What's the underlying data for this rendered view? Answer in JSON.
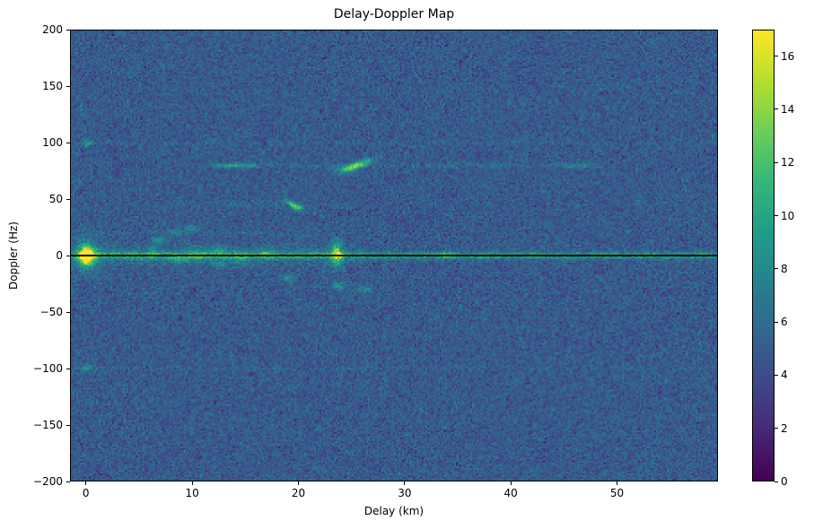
{
  "chart_data": {
    "type": "heatmap",
    "title": "Delay-Doppler Map",
    "xlabel": "Delay (km)",
    "ylabel": "Doppler (Hz)",
    "x_range": [
      -1.5,
      59.5
    ],
    "y_range": [
      -200,
      200
    ],
    "x_ticks": [
      0,
      10,
      20,
      30,
      40,
      50
    ],
    "y_ticks": [
      200,
      150,
      100,
      50,
      0,
      -50,
      -100,
      -150,
      -200
    ],
    "colormap": "viridis",
    "vlim": [
      0,
      17
    ],
    "colorbar_ticks": [
      0,
      2,
      4,
      6,
      8,
      10,
      12,
      14,
      16
    ],
    "legend": "none",
    "grid": false,
    "noise": {
      "mean": 4.8,
      "std": 1.0,
      "seed": 1337
    },
    "features": {
      "zero_doppler_line": {
        "doppler": 0,
        "color": "#000000"
      },
      "stripes": [
        {
          "doppler": 0,
          "d0": -1.5,
          "d1": 59.5,
          "amp": 4.6,
          "sigma": 2.0,
          "fade": 0
        },
        {
          "doppler": 0,
          "d0": -0.5,
          "d1": 27,
          "amp": 1.6,
          "sigma": 5.5,
          "fade": 3
        },
        {
          "doppler": 100,
          "d0": -1.5,
          "d1": 59.5,
          "amp": 0.5,
          "sigma": 1.2,
          "fade": 0
        },
        {
          "doppler": -100,
          "d0": -1.5,
          "d1": 59.5,
          "amp": 0.45,
          "sigma": 1.2,
          "fade": 0
        },
        {
          "doppler": 80,
          "d0": 10.5,
          "d1": 48,
          "amp": 1.1,
          "sigma": 1.3,
          "fade": 3
        },
        {
          "doppler": 80,
          "d0": 12,
          "d1": 16.5,
          "amp": 2.2,
          "sigma": 1.2,
          "fade": 1
        },
        {
          "doppler": 45,
          "d0": 4,
          "d1": 27,
          "amp": 0.7,
          "sigma": 1.3,
          "fade": 3
        },
        {
          "doppler": 20,
          "d0": 4,
          "d1": 24,
          "amp": 0.45,
          "sigma": 1.6,
          "fade": 3
        }
      ],
      "blobs": [
        {
          "delay": 0,
          "doppler": 0,
          "amp": 13,
          "sd": 0.45,
          "sf": 5.5
        },
        {
          "delay": 0,
          "doppler": 0,
          "amp": 4,
          "sd": 0.9,
          "sf": 11
        },
        {
          "delay": 0,
          "doppler": 100,
          "amp": 4.5,
          "sd": 0.4,
          "sf": 1.8
        },
        {
          "delay": 0,
          "doppler": -100,
          "amp": 3.8,
          "sd": 0.4,
          "sf": 1.8
        },
        {
          "delay": 6.8,
          "doppler": 14,
          "amp": 3.2,
          "sd": 0.45,
          "sf": 2.2
        },
        {
          "delay": 8.4,
          "doppler": 21,
          "amp": 2.4,
          "sd": 0.4,
          "sf": 2.0
        },
        {
          "delay": 9.9,
          "doppler": 24,
          "amp": 3.2,
          "sd": 0.45,
          "sf": 2.2
        },
        {
          "delay": 12.3,
          "doppler": 5,
          "amp": 3.0,
          "sd": 0.5,
          "sf": 3.0
        },
        {
          "delay": 12.5,
          "doppler": -8,
          "amp": 3.2,
          "sd": 0.5,
          "sf": 2.2
        },
        {
          "delay": 8.7,
          "doppler": -4,
          "amp": 2.8,
          "sd": 0.5,
          "sf": 3.5
        },
        {
          "delay": 6.3,
          "doppler": 3,
          "amp": 2.8,
          "sd": 0.4,
          "sf": 4.5
        },
        {
          "delay": 10.4,
          "doppler": 1,
          "amp": 2.6,
          "sd": 0.5,
          "sf": 4.5
        },
        {
          "delay": 14.6,
          "doppler": -3,
          "amp": 2.6,
          "sd": 0.5,
          "sf": 3.5
        },
        {
          "delay": 16.9,
          "doppler": 2,
          "amp": 2.6,
          "sd": 0.5,
          "sf": 3.0
        },
        {
          "delay": 19.4,
          "doppler": 45,
          "amp": 5.5,
          "sd": 0.55,
          "sf": 2.2,
          "slope": -5
        },
        {
          "delay": 19.9,
          "doppler": 43,
          "amp": 3.5,
          "sd": 0.4,
          "sf": 2.0
        },
        {
          "delay": 25.5,
          "doppler": 80,
          "amp": 7.5,
          "sd": 1.0,
          "sf": 2.4,
          "slope": 3.5
        },
        {
          "delay": 24.5,
          "doppler": 77.5,
          "amp": 3.0,
          "sd": 0.8,
          "sf": 2.0
        },
        {
          "delay": 13.5,
          "doppler": 80,
          "amp": 2.0,
          "sd": 1.6,
          "sf": 1.4
        },
        {
          "delay": 19.0,
          "doppler": -20,
          "amp": 3.8,
          "sd": 0.5,
          "sf": 2.2
        },
        {
          "delay": 23.6,
          "doppler": 2,
          "amp": 8.0,
          "sd": 0.35,
          "sf": 7.5
        },
        {
          "delay": 23.8,
          "doppler": -27,
          "amp": 4.2,
          "sd": 0.45,
          "sf": 2.4
        },
        {
          "delay": 26.2,
          "doppler": -30,
          "amp": 3.2,
          "sd": 0.5,
          "sf": 2.0
        },
        {
          "delay": 33.8,
          "doppler": 0,
          "amp": 2.5,
          "sd": 0.6,
          "sf": 3.0
        },
        {
          "delay": 46.5,
          "doppler": 80,
          "amp": 2.2,
          "sd": 1.2,
          "sf": 1.4
        }
      ]
    }
  }
}
